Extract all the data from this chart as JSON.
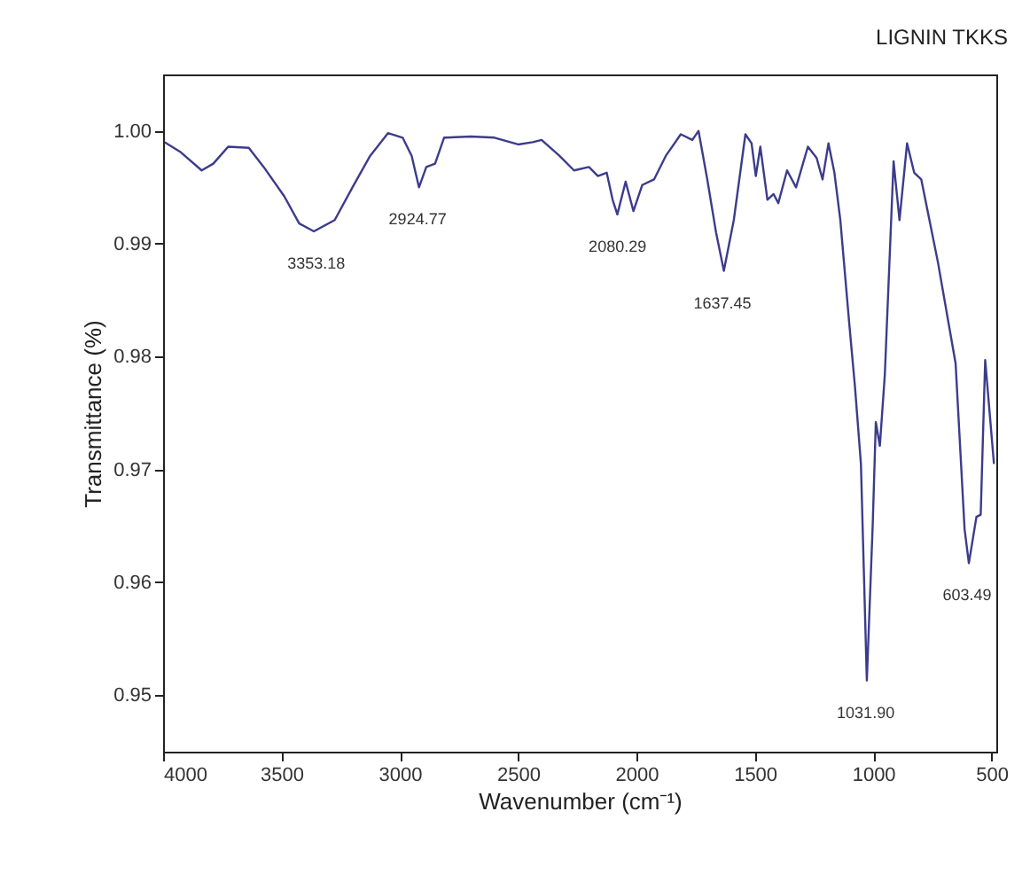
{
  "chart_data": {
    "type": "line",
    "title": "LIGNIN TKKS",
    "xlabel": "Wavenumber (cm⁻¹)",
    "ylabel": "Transmittance (%)",
    "xlim": [
      4000,
      480
    ],
    "ylim": [
      0.945,
      1.005
    ],
    "xticks": [
      4000,
      3500,
      3000,
      2500,
      2000,
      1500,
      1000,
      500
    ],
    "yticks": [
      {
        "value": 0.95,
        "label": "0.95"
      },
      {
        "value": 0.96,
        "label": "0.96"
      },
      {
        "value": 0.97,
        "label": "0.97"
      },
      {
        "value": 0.98,
        "label": "0.98"
      },
      {
        "value": 0.99,
        "label": "0.99"
      },
      {
        "value": 1.0,
        "label": "1.00"
      }
    ],
    "grid": false,
    "line_style": "solid",
    "annotations": [
      {
        "text": "3353.18",
        "x": 3353.18,
        "y": 0.9911
      },
      {
        "text": "2924.77",
        "x": 2924.77,
        "y": 0.995
      },
      {
        "text": "2080.29",
        "x": 2080.29,
        "y": 0.9926
      },
      {
        "text": "1637.45",
        "x": 1637.45,
        "y": 0.9876
      },
      {
        "text": "1031.90",
        "x": 1031.9,
        "y": 0.9513
      },
      {
        "text": "603.49",
        "x": 603.49,
        "y": 0.9617
      }
    ],
    "x": [
      3993,
      3925,
      3837,
      3788,
      3725,
      3638,
      3575,
      3488,
      3425,
      3363,
      3275,
      3200,
      3125,
      3050,
      2988,
      2950,
      2919,
      2888,
      2851,
      2813,
      2700,
      2600,
      2500,
      2438,
      2401,
      2326,
      2264,
      2201,
      2163,
      2126,
      2101,
      2081,
      2046,
      2013,
      1976,
      1926,
      1876,
      1813,
      1764,
      1738,
      1701,
      1664,
      1631,
      1589,
      1540,
      1514,
      1496,
      1477,
      1447,
      1421,
      1401,
      1364,
      1326,
      1276,
      1239,
      1214,
      1189,
      1164,
      1139,
      1102,
      1077,
      1052,
      1027,
      1002,
      989,
      972,
      951,
      914,
      889,
      857,
      827,
      797,
      727,
      652,
      614,
      596,
      564,
      546,
      527,
      490
    ],
    "series": [
      {
        "color": "#3c3c8c",
        "values": [
          0.999,
          0.9981,
          0.9965,
          0.9971,
          0.9986,
          0.9985,
          0.9968,
          0.9942,
          0.9918,
          0.9911,
          0.9921,
          0.995,
          0.9978,
          0.9998,
          0.9994,
          0.9978,
          0.995,
          0.9968,
          0.9971,
          0.9994,
          0.9995,
          0.9994,
          0.9988,
          0.999,
          0.9992,
          0.9978,
          0.9965,
          0.9968,
          0.996,
          0.9963,
          0.9939,
          0.9926,
          0.9955,
          0.9929,
          0.9952,
          0.9957,
          0.9978,
          0.9997,
          0.9992,
          1.0,
          0.9957,
          0.991,
          0.9876,
          0.9921,
          0.9997,
          0.9989,
          0.996,
          0.9986,
          0.9939,
          0.9944,
          0.9936,
          0.9965,
          0.995,
          0.9986,
          0.9976,
          0.9957,
          0.9989,
          0.9963,
          0.9921,
          0.9831,
          0.9773,
          0.9705,
          0.9513,
          0.9652,
          0.9742,
          0.9721,
          0.9784,
          0.9973,
          0.9921,
          0.9989,
          0.9963,
          0.9957,
          0.9884,
          0.9794,
          0.9647,
          0.9617,
          0.9658,
          0.966,
          0.9797,
          0.9705
        ]
      }
    ]
  }
}
